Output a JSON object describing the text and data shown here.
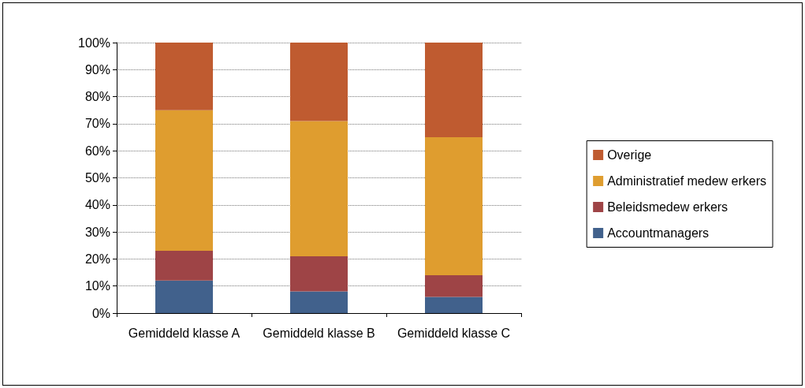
{
  "chart_data": {
    "type": "bar",
    "stacked": true,
    "categories": [
      "Gemiddeld klasse A",
      "Gemiddeld klasse B",
      "Gemiddeld klasse C"
    ],
    "series": [
      {
        "name": "Accountmanagers",
        "color": "#41618c",
        "values": [
          12,
          8,
          6
        ]
      },
      {
        "name": "Beleidsmedew erkers",
        "color": "#9e4446",
        "values": [
          11,
          13,
          8
        ]
      },
      {
        "name": "Administratief medew erkers",
        "color": "#df9d2f",
        "values": [
          52,
          50,
          51
        ]
      },
      {
        "name": "Overige",
        "color": "#bf5b30",
        "values": [
          25,
          29,
          35
        ]
      }
    ],
    "ylim": [
      0,
      100
    ],
    "yticks": [
      {
        "value": 0,
        "label": "0%"
      },
      {
        "value": 10,
        "label": "10%"
      },
      {
        "value": 20,
        "label": "20%"
      },
      {
        "value": 30,
        "label": "30%"
      },
      {
        "value": 40,
        "label": "40%"
      },
      {
        "value": 50,
        "label": "50%"
      },
      {
        "value": 60,
        "label": "60%"
      },
      {
        "value": 70,
        "label": "70%"
      },
      {
        "value": 80,
        "label": "80%"
      },
      {
        "value": 90,
        "label": "90%"
      },
      {
        "value": 100,
        "label": "100%"
      }
    ],
    "grid": "y",
    "legend": "right"
  }
}
